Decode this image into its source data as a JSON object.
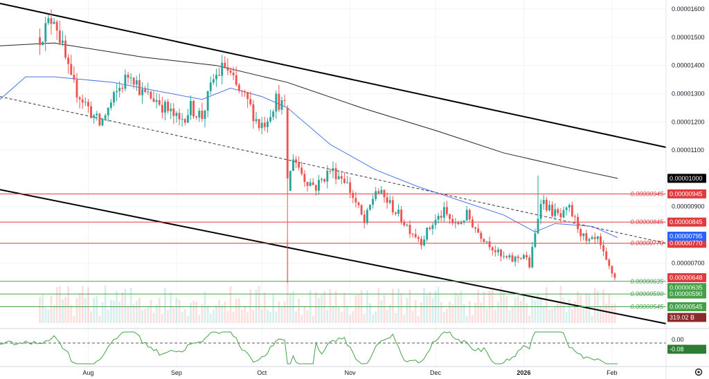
{
  "chart_data": {
    "type": "candlestick",
    "price_axis": {
      "range": [
        4.8e-06,
        1.62e-05
      ],
      "ticks": [
        "0.00001600",
        "0.00001500",
        "0.00001400",
        "0.00001300",
        "0.00001200",
        "0.00001100",
        "0.00000900",
        "0.00000700"
      ],
      "tick_values": [
        1.6e-05,
        1.5e-05,
        1.4e-05,
        1.3e-05,
        1.2e-05,
        1.1e-05,
        9e-06,
        7e-06
      ]
    },
    "time_axis": {
      "labels": [
        "Aug",
        "Sep",
        "Oct",
        "Nov",
        "Dec",
        "2026",
        "Feb"
      ],
      "label_dates": [
        "2025-08-01",
        "2025-09-01",
        "2025-10-01",
        "2025-11-01",
        "2025-12-01",
        "2026-01-01",
        "2026-02-01"
      ],
      "start": "2025-07-01",
      "end": "2026-02-20"
    },
    "candles_summary": {
      "start_date": "2025-07-15",
      "end_date": "2026-02-02",
      "first_close": 1.5e-05,
      "last_close": 6.48e-06,
      "anchors": [
        [
          "2025-07-15",
          1.5e-05
        ],
        [
          "2025-07-20",
          1.58e-05
        ],
        [
          "2025-07-26",
          1.34e-05
        ],
        [
          "2025-08-01",
          1.25e-05
        ],
        [
          "2025-08-05",
          1.19e-05
        ],
        [
          "2025-08-12",
          1.32e-05
        ],
        [
          "2025-08-16",
          1.38e-05
        ],
        [
          "2025-08-20",
          1.3e-05
        ],
        [
          "2025-08-25",
          1.28e-05
        ],
        [
          "2025-08-30",
          1.23e-05
        ],
        [
          "2025-09-02",
          1.2e-05
        ],
        [
          "2025-09-06",
          1.25e-05
        ],
        [
          "2025-09-10",
          1.22e-05
        ],
        [
          "2025-09-14",
          1.35e-05
        ],
        [
          "2025-09-18",
          1.4e-05
        ],
        [
          "2025-09-22",
          1.32e-05
        ],
        [
          "2025-09-26",
          1.27e-05
        ],
        [
          "2025-09-30",
          1.19e-05
        ],
        [
          "2025-10-02",
          1.2e-05
        ],
        [
          "2025-10-06",
          1.28e-05
        ],
        [
          "2025-10-09",
          1.25e-05
        ],
        [
          "2025-10-10",
          9.6e-06
        ],
        [
          "2025-10-12",
          1.08e-05
        ],
        [
          "2025-10-16",
          1e-05
        ],
        [
          "2025-10-20",
          9.7e-06
        ],
        [
          "2025-10-25",
          1.03e-05
        ],
        [
          "2025-10-30",
          1e-05
        ],
        [
          "2025-11-04",
          8.9e-06
        ],
        [
          "2025-11-06",
          8.4e-06
        ],
        [
          "2025-11-10",
          9.6e-06
        ],
        [
          "2025-11-14",
          9.2e-06
        ],
        [
          "2025-11-18",
          8.7e-06
        ],
        [
          "2025-11-22",
          8.2e-06
        ],
        [
          "2025-11-26",
          7.8e-06
        ],
        [
          "2025-11-30",
          8.4e-06
        ],
        [
          "2025-12-04",
          8.8e-06
        ],
        [
          "2025-12-08",
          8.3e-06
        ],
        [
          "2025-12-12",
          8.7e-06
        ],
        [
          "2025-12-16",
          8.1e-06
        ],
        [
          "2025-12-20",
          7.7e-06
        ],
        [
          "2025-12-24",
          7.2e-06
        ],
        [
          "2025-12-28",
          7.1e-06
        ],
        [
          "2026-01-01",
          7.3e-06
        ],
        [
          "2026-01-03",
          6.9e-06
        ],
        [
          "2026-01-05",
          8e-06
        ],
        [
          "2026-01-07",
          9.3e-06
        ],
        [
          "2026-01-10",
          8.9e-06
        ],
        [
          "2026-01-14",
          8.6e-06
        ],
        [
          "2026-01-17",
          8.9e-06
        ],
        [
          "2026-01-20",
          8.3e-06
        ],
        [
          "2026-01-23",
          7.7e-06
        ],
        [
          "2026-01-27",
          7.8e-06
        ],
        [
          "2026-01-30",
          7e-06
        ],
        [
          "2026-02-02",
          6.48e-06
        ]
      ]
    },
    "moving_averages": [
      {
        "color": "#4a72e8",
        "points": [
          [
            "2025-07-01",
            1.28e-05
          ],
          [
            "2025-07-10",
            1.36e-05
          ],
          [
            "2025-07-20",
            1.36e-05
          ],
          [
            "2025-08-10",
            1.34e-05
          ],
          [
            "2025-08-25",
            1.31e-05
          ],
          [
            "2025-09-10",
            1.28e-05
          ],
          [
            "2025-09-20",
            1.32e-05
          ],
          [
            "2025-10-01",
            1.29e-05
          ],
          [
            "2025-10-10",
            1.25e-05
          ],
          [
            "2025-10-25",
            1.12e-05
          ],
          [
            "2025-11-10",
            1.03e-05
          ],
          [
            "2025-11-25",
            9.7e-06
          ],
          [
            "2025-12-10",
            9.2e-06
          ],
          [
            "2025-12-25",
            8.7e-06
          ],
          [
            "2026-01-05",
            8.1e-06
          ],
          [
            "2026-01-12",
            8.4e-06
          ],
          [
            "2026-01-25",
            8.3e-06
          ],
          [
            "2026-02-03",
            7.9e-06
          ]
        ]
      },
      {
        "color": "#222222",
        "points": [
          [
            "2025-07-01",
            1.47e-05
          ],
          [
            "2025-07-20",
            1.48e-05
          ],
          [
            "2025-08-20",
            1.43e-05
          ],
          [
            "2025-09-15",
            1.4e-05
          ],
          [
            "2025-10-10",
            1.34e-05
          ],
          [
            "2025-11-05",
            1.25e-05
          ],
          [
            "2025-12-01",
            1.17e-05
          ],
          [
            "2025-12-25",
            1.09e-05
          ],
          [
            "2026-01-20",
            1.03e-05
          ],
          [
            "2026-02-03",
            1e-05
          ]
        ]
      }
    ],
    "trendlines": [
      {
        "style": "solid",
        "color": "#000000",
        "points": [
          [
            "2025-07-01",
            1.62e-05
          ],
          [
            "2026-02-20",
            1.11e-05
          ]
        ]
      },
      {
        "style": "solid",
        "color": "#000000",
        "points": [
          [
            "2025-07-01",
            9.6e-06
          ],
          [
            "2026-02-20",
            4.85e-06
          ]
        ]
      },
      {
        "style": "dashed",
        "color": "#333333",
        "points": [
          [
            "2025-07-01",
            1.29e-05
          ],
          [
            "2026-02-20",
            7.7e-06
          ]
        ]
      }
    ],
    "horizontal_levels": [
      {
        "value": 9.45e-06,
        "label": "0.00000945",
        "badge": "0.00000945",
        "color": "#e03a3e"
      },
      {
        "value": 8.45e-06,
        "label": "0.00000845",
        "badge": "0.00000845",
        "color": "#e03a3e"
      },
      {
        "value": 7.7e-06,
        "label": "0.00000770",
        "badge": "0.00000770",
        "color": "#e03a3e"
      },
      {
        "value": 6.35e-06,
        "label": "0.00000635",
        "badge": "0.00000635",
        "color": "#43a047"
      },
      {
        "value": 5.9e-06,
        "label": "0.00000590",
        "badge": "0.00000590",
        "color": "#43a047"
      },
      {
        "value": 5.45e-06,
        "label": "0.00000545",
        "badge": "0.00000545",
        "color": "#43a047"
      }
    ],
    "price_badges": [
      {
        "value": 1e-05,
        "text": "0.00001000",
        "bg": "#000000"
      },
      {
        "value": 7.95e-06,
        "text": "0.00000795",
        "bg": "#2962ff"
      },
      {
        "value": 6.48e-06,
        "text": "0.00000648",
        "bg": "#e03a3e"
      }
    ],
    "volume": {
      "last_label": "319.02 B",
      "label_bg": "#8b2a2a"
    },
    "oscillator": {
      "ticks": [
        "0.00"
      ],
      "current": "-0.08",
      "current_bg": "#2e7d32",
      "zero_line": "dashed",
      "line_color": "#43a047"
    },
    "colors": {
      "up": "#26a69a",
      "down": "#ef5350"
    }
  }
}
